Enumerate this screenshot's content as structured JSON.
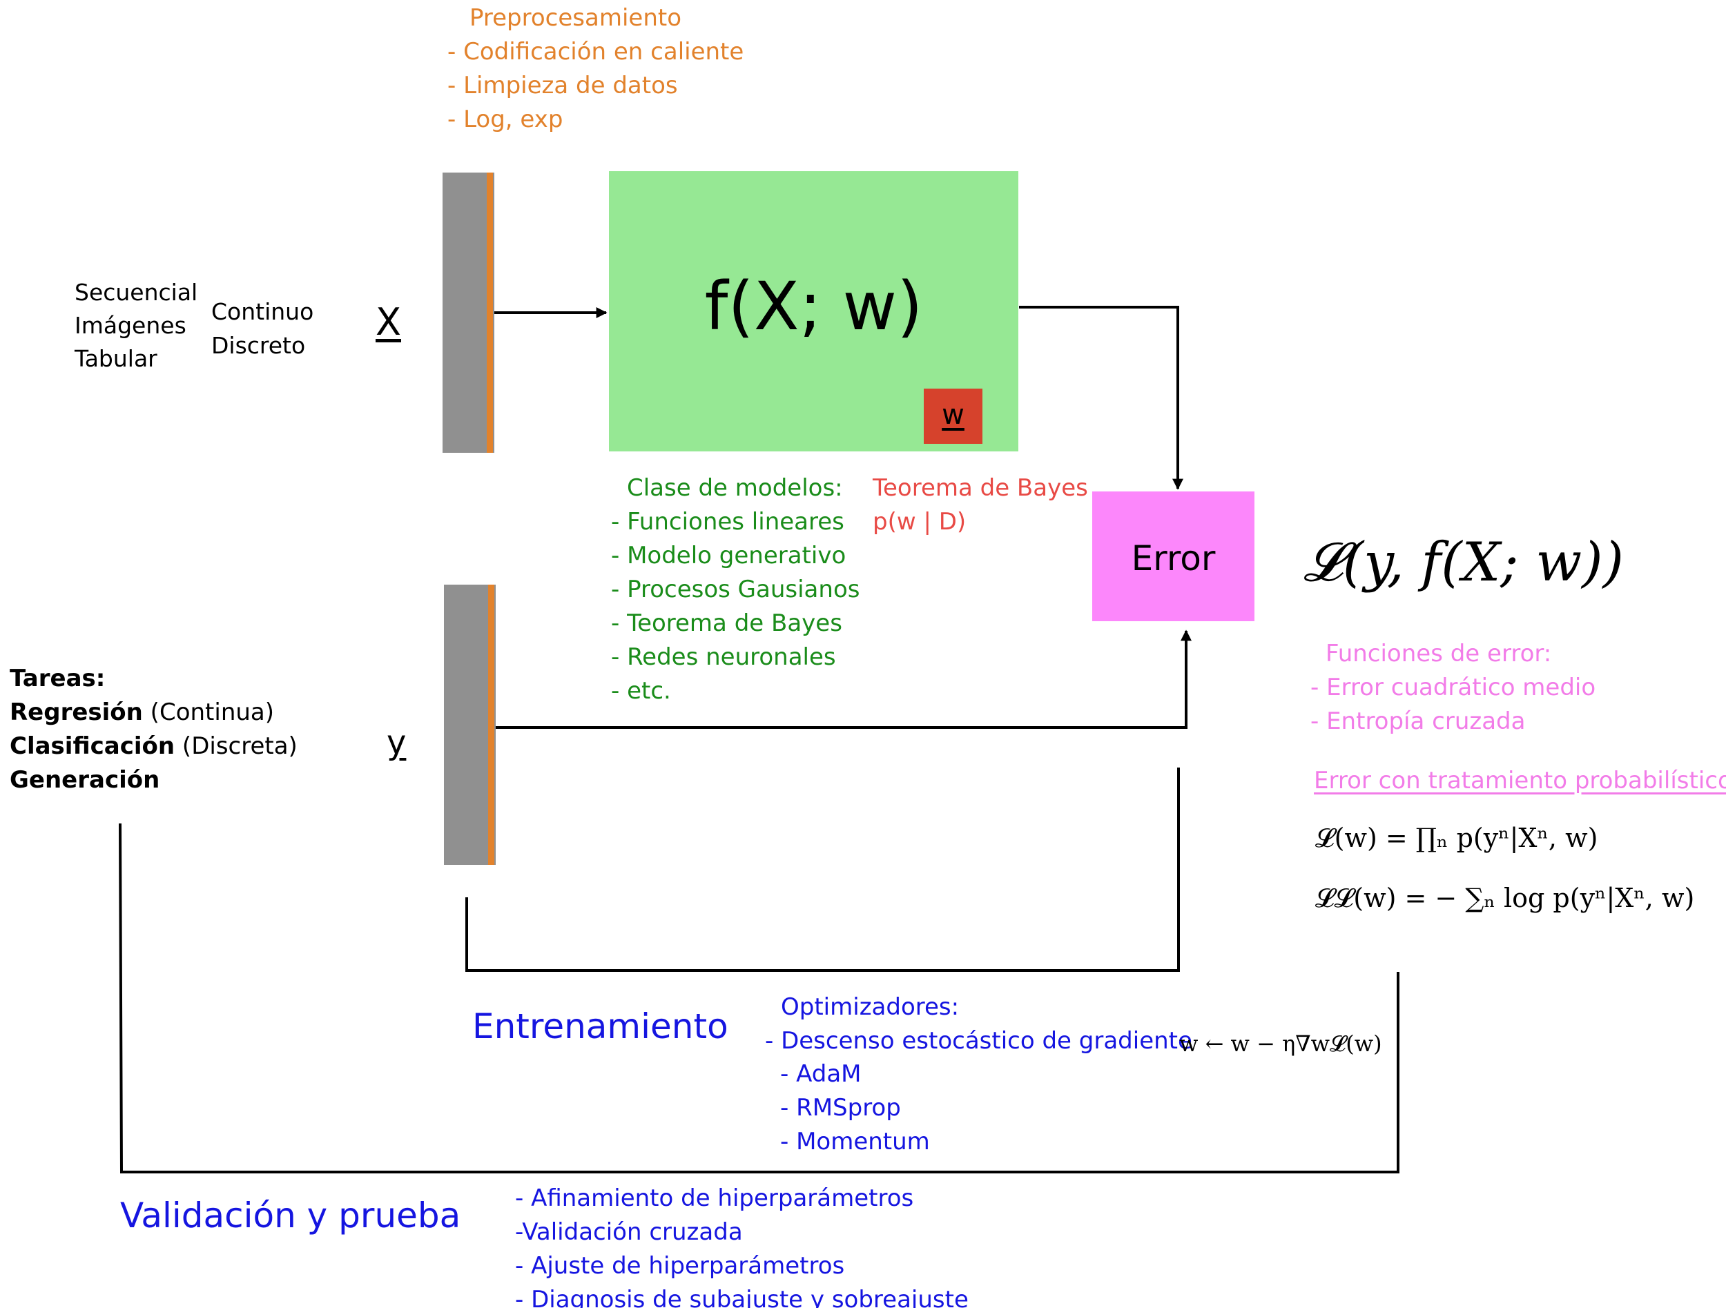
{
  "colors": {
    "orange": "#e2822c",
    "green_text": "#1a8c1a",
    "red_text": "#e84a45",
    "pink_text": "#f27ce8",
    "blue": "#1515e0",
    "black": "#000000",
    "model_box": "#96e894",
    "error_box": "#fc87fb",
    "weight_box": "#d6422c",
    "data_bar": "#909090"
  },
  "preprocessing": {
    "title": "Preprocesamiento",
    "items": [
      "- Codificación en caliente",
      "- Limpieza de datos",
      "- Log, exp"
    ]
  },
  "data_types": [
    "Secuencial",
    "Imágenes",
    "Tabular"
  ],
  "value_types": [
    "Continuo",
    "Discreto"
  ],
  "input_label": "X",
  "target_label": "y",
  "model": {
    "formula": "f(X; w)",
    "weight_label": "w"
  },
  "model_classes": {
    "title": "Clase de modelos:",
    "items": [
      "- Funciones lineares",
      "- Modelo generativo",
      "- Procesos Gausianos",
      "- Teorema de Bayes",
      "- Redes neuronales",
      "- etc."
    ]
  },
  "bayes": {
    "title": "Teorema de Bayes",
    "formula": "p(w | D)"
  },
  "error_box_label": "Error",
  "loss_formula": "𝓛(y, f(X; w))",
  "error_functions": {
    "title": "Funciones de error:",
    "items": [
      "- Error cuadrático medio",
      "- Entropía cruzada"
    ]
  },
  "probabilistic": {
    "title": "Error con tratamiento probabilístico:",
    "likelihood": "𝓛(w) = ∏ₙ p(yⁿ|Xⁿ, w)",
    "log_likelihood": "𝓛𝓛(w) = − ∑ₙ log p(yⁿ|Xⁿ, w)"
  },
  "tasks": {
    "title": "Tareas:",
    "items": [
      {
        "bold": "Regresión",
        "rest": " (Continua)"
      },
      {
        "bold": "Clasificación",
        "rest": " (Discreta)"
      },
      {
        "bold": "Generación",
        "rest": ""
      }
    ]
  },
  "training": {
    "label": "Entrenamiento",
    "optimizers_title": "Optimizadores:",
    "optimizers": [
      "- Descenso estocástico de gradiente",
      "- AdaM",
      "- RMSprop",
      "- Momentum"
    ],
    "update_rule": "w ← w − η∇w𝓛(w)"
  },
  "validation": {
    "label": "Validación y prueba",
    "items": [
      "- Afinamiento de hiperparámetros",
      "-Validación cruzada",
      "- Ajuste de hiperparámetros",
      "- Diagnosis de subajuste y sobreajuste"
    ]
  }
}
